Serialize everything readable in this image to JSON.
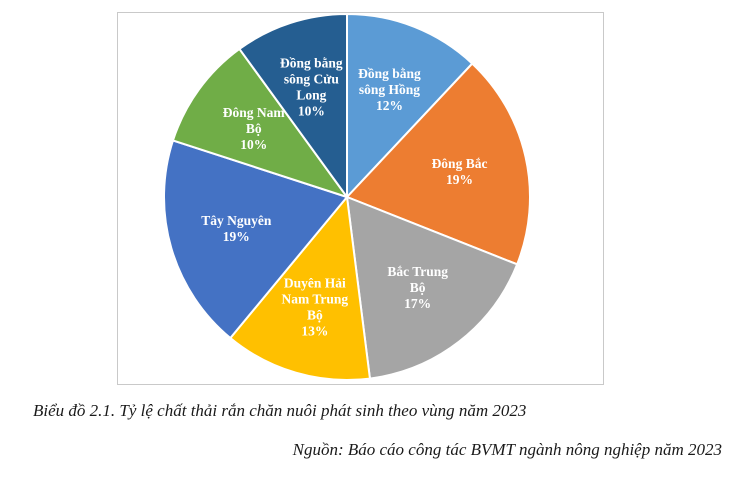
{
  "chart_data": {
    "type": "pie",
    "slices": [
      {
        "label": [
          "Đồng bằng",
          "sông Hồng"
        ],
        "value": 12,
        "value_label": "12%",
        "color": "#5B9BD5"
      },
      {
        "label": [
          "Đông Bắc"
        ],
        "value": 19,
        "value_label": "19%",
        "color": "#ED7D31"
      },
      {
        "label": [
          "Bắc Trung",
          "Bộ"
        ],
        "value": 17,
        "value_label": "17%",
        "color": "#A5A5A5"
      },
      {
        "label": [
          "Duyên Hải",
          "Nam Trung",
          "Bộ"
        ],
        "value": 13,
        "value_label": "13%",
        "color": "#FFC000"
      },
      {
        "label": [
          "Tây Nguyên"
        ],
        "value": 19,
        "value_label": "19%",
        "color": "#4472C4"
      },
      {
        "label": [
          "Đông Nam",
          "Bộ"
        ],
        "value": 10,
        "value_label": "10%",
        "color": "#70AD47"
      },
      {
        "label": [
          "Đồng bằng",
          "sông Cửu",
          "Long"
        ],
        "value": 10,
        "value_label": "10%",
        "color": "#255E91"
      }
    ]
  },
  "caption": "Biểu đồ 2.1. Tỷ lệ chất thải rắn chăn nuôi phát sinh theo vùng năm 2023",
  "source": "Nguồn: Báo cáo công tác BVMT ngành nông nghiệp năm 2023"
}
